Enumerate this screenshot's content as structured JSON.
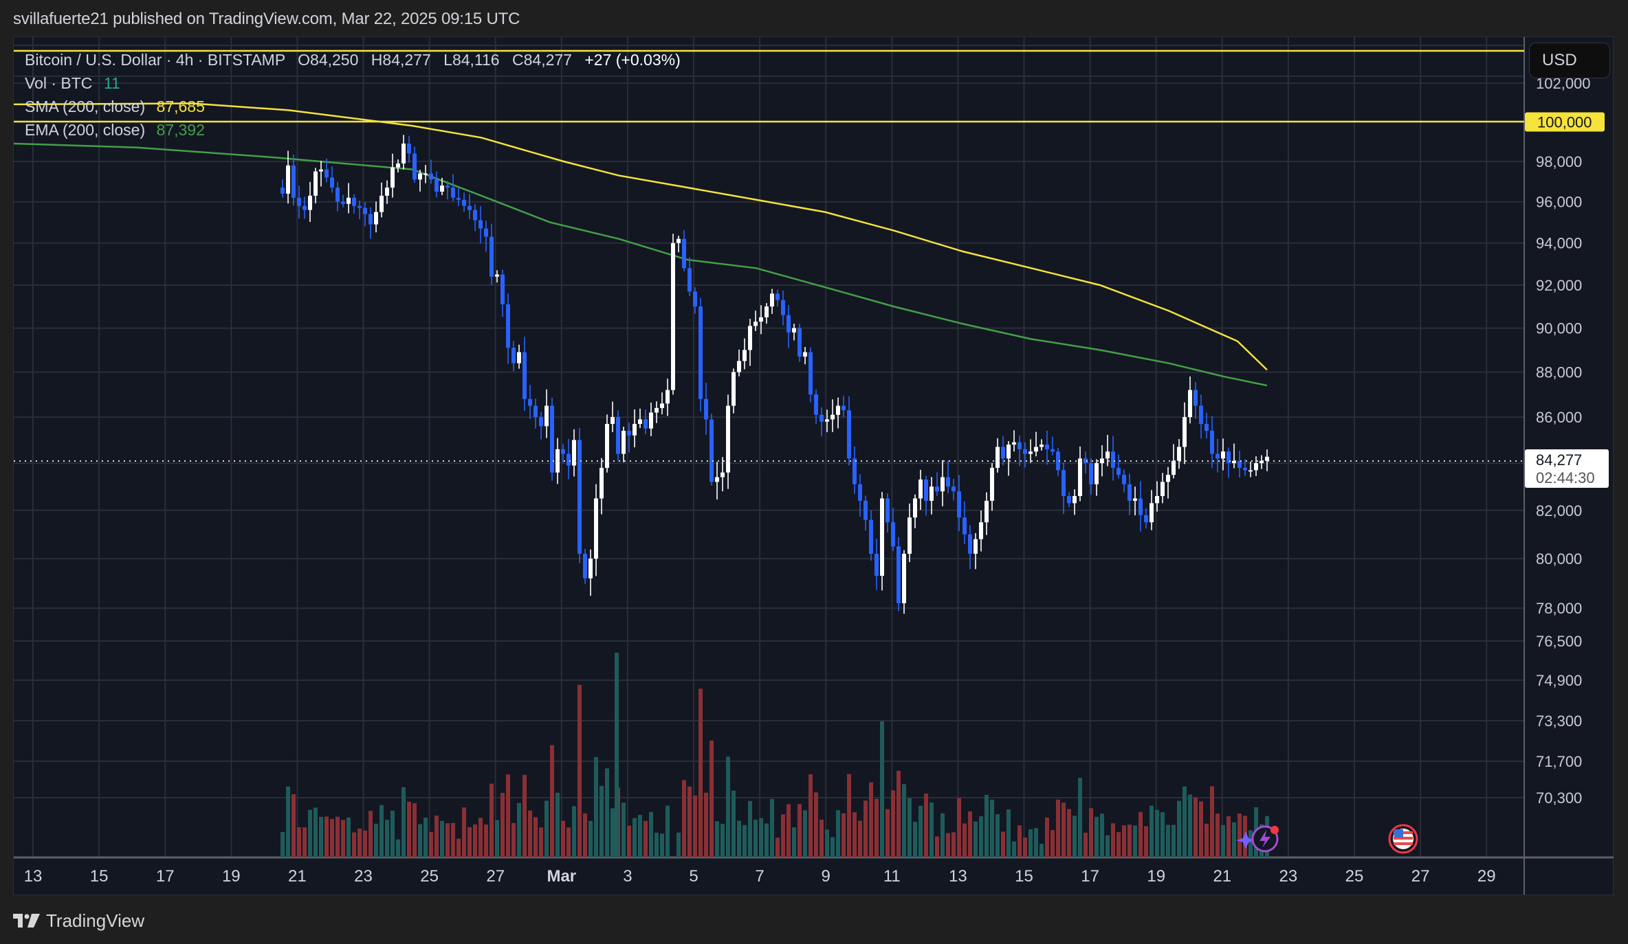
{
  "header": {
    "published_text": "svillafuerte21 published on TradingView.com, Mar 22, 2025 09:15 UTC"
  },
  "legend": {
    "symbol": "Bitcoin / U.S. Dollar · 4h · BITSTAMP",
    "open_label": "O",
    "open": "84,250",
    "high_label": "H",
    "high": "84,277",
    "low_label": "L",
    "low": "84,116",
    "close_label": "C",
    "close": "84,277",
    "change": "+27 (+0.03%)",
    "volume_label": "Vol · BTC",
    "volume": "11",
    "sma_label": "SMA (200, close)",
    "sma_value": "87,685",
    "ema_label": "EMA (200, close)",
    "ema_value": "87,392"
  },
  "price_axis": {
    "currency_button": "USD",
    "ticks": [
      "102,000",
      "100,000",
      "98,000",
      "96,000",
      "94,000",
      "92,000",
      "90,000",
      "88,000",
      "86,000",
      "84,000",
      "82,000",
      "80,000",
      "78,000",
      "76,500",
      "74,900",
      "73,300",
      "71,700",
      "70,300"
    ],
    "highlight_level": "100,000",
    "current_price": "84,277",
    "countdown": "02:44:30"
  },
  "time_axis": {
    "ticks": [
      "13",
      "15",
      "17",
      "19",
      "21",
      "23",
      "25",
      "27",
      "Mar",
      "3",
      "5",
      "7",
      "9",
      "11",
      "13",
      "15",
      "17",
      "19",
      "21",
      "23",
      "25",
      "27",
      "29"
    ]
  },
  "events": [
    {
      "icon": "lightning-event-icon",
      "label": "ideas/events marker"
    },
    {
      "icon": "us-flag-icon",
      "label": "US economic event"
    }
  ],
  "footer": {
    "brand": "TradingView"
  },
  "colors": {
    "background": "#131722",
    "outer": "#1f1f1f",
    "grid": "#2a2e39",
    "bull_candle": "#ffffff",
    "bear_candle": "#2962ff",
    "vol_up": "#1e5c5b",
    "vol_down": "#8a3035",
    "sma": "#f5e33b",
    "ema": "#43a047",
    "hline": "#f5e33b"
  },
  "chart_data": {
    "type": "candlestick",
    "title": "Bitcoin / U.S. Dollar · 4h · BITSTAMP",
    "interval": "4h",
    "scale": "log",
    "ylim": [
      69000,
      104000
    ],
    "x_range": [
      "Feb 12, 2025",
      "Mar 30, 2025"
    ],
    "horizontal_lines": [
      102560,
      100000
    ],
    "indicators": {
      "SMA_200": {
        "last": 87685,
        "path": [
          [
            20,
            100900
          ],
          [
            280,
            100950
          ],
          [
            420,
            100600
          ],
          [
            600,
            99800
          ],
          [
            700,
            99200
          ],
          [
            820,
            98000
          ],
          [
            900,
            97300
          ],
          [
            1000,
            96700
          ],
          [
            1100,
            96100
          ],
          [
            1200,
            95500
          ],
          [
            1300,
            94600
          ],
          [
            1400,
            93600
          ],
          [
            1500,
            92800
          ],
          [
            1600,
            92000
          ],
          [
            1700,
            90800
          ],
          [
            1800,
            89400
          ],
          [
            1843,
            88100
          ]
        ]
      },
      "EMA_200": {
        "last": 87392,
        "path": [
          [
            20,
            98900
          ],
          [
            200,
            98700
          ],
          [
            400,
            98200
          ],
          [
            600,
            97600
          ],
          [
            700,
            96300
          ],
          [
            800,
            95000
          ],
          [
            900,
            94200
          ],
          [
            1000,
            93200
          ],
          [
            1100,
            92800
          ],
          [
            1200,
            91900
          ],
          [
            1300,
            91000
          ],
          [
            1400,
            90200
          ],
          [
            1500,
            89500
          ],
          [
            1600,
            89000
          ],
          [
            1700,
            88400
          ],
          [
            1780,
            87800
          ],
          [
            1843,
            87400
          ]
        ]
      }
    },
    "closes_every_4h": [
      96400,
      97800,
      96200,
      95800,
      95600,
      96300,
      97500,
      97600,
      97200,
      96700,
      96000,
      95900,
      96200,
      95800,
      95700,
      95400,
      94900,
      95500,
      96300,
      96700,
      97700,
      97900,
      98900,
      98400,
      97100,
      97400,
      97400,
      97100,
      96500,
      96800,
      96700,
      96200,
      96100,
      95800,
      95600,
      95100,
      94700,
      94300,
      92400,
      92500,
      91100,
      89100,
      88400,
      88900,
      86800,
      86500,
      86000,
      85600,
      86500,
      83600,
      84600,
      84400,
      83900,
      85000,
      80200,
      79200,
      80000,
      82500,
      83800,
      85700,
      86000,
      84400,
      85400,
      85200,
      85700,
      85900,
      85500,
      86200,
      86400,
      86600,
      87200,
      94000,
      94200,
      92800,
      91700,
      91000,
      86800,
      85900,
      83200,
      83400,
      83600,
      86500,
      88000,
      88500,
      89000,
      90100,
      90300,
      90500,
      91000,
      91600,
      91300,
      90600,
      89800,
      90000,
      88700,
      88900,
      87000,
      86100,
      85800,
      85900,
      86100,
      86500,
      86300,
      84200,
      83100,
      82400,
      81600,
      80200,
      79300,
      82500,
      81500,
      80500,
      78200,
      80200,
      81700,
      82500,
      83300,
      82400,
      83000,
      82800,
      83400,
      83000,
      82800,
      81700,
      81000,
      80200,
      80800,
      81500,
      82400,
      83800,
      84700,
      84200,
      84800,
      84900,
      84600,
      84400,
      84500,
      84700,
      84800,
      84600,
      84500,
      83700,
      82600,
      82300,
      82600,
      84200,
      84000,
      83100,
      84000,
      84200,
      84500,
      83800,
      83500,
      83100,
      82400,
      82500,
      81800,
      81500,
      82300,
      82600,
      83200,
      83500,
      84100,
      84700,
      86000,
      87200,
      86500,
      85700,
      85400,
      84400,
      84200,
      84500,
      84000,
      84100,
      83800,
      83700,
      83700,
      84000,
      84100,
      84277
    ],
    "volume_relative": "tallest bar at Mar 3 (teal); notable red spikes around Feb 21, Feb 25-28, Mar 4, Mar 10-11"
  }
}
